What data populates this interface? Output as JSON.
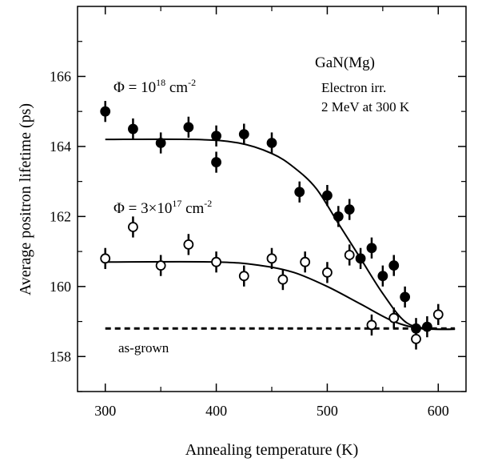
{
  "chart_data": {
    "type": "scatter",
    "xlabel": "Annealing temperature (K)",
    "ylabel": "Average positron lifetime (ps)",
    "xlim": [
      275,
      625
    ],
    "ylim": [
      157,
      168
    ],
    "x_ticks": [
      300,
      400,
      500,
      600
    ],
    "x_tick_labels": [
      "300",
      "400",
      "500",
      "600"
    ],
    "y_ticks": [
      158,
      160,
      162,
      164,
      166
    ],
    "y_tick_labels": [
      "158",
      "160",
      "162",
      "164",
      "166"
    ],
    "grid": false,
    "series": [
      {
        "name": "Φ = 10¹⁸ cm⁻²",
        "marker": "filled-circle",
        "points": [
          {
            "x": 300,
            "y": 165.0
          },
          {
            "x": 325,
            "y": 164.5
          },
          {
            "x": 350,
            "y": 164.1
          },
          {
            "x": 375,
            "y": 164.55
          },
          {
            "x": 400,
            "y": 164.3
          },
          {
            "x": 400,
            "y": 163.55
          },
          {
            "x": 425,
            "y": 164.35
          },
          {
            "x": 450,
            "y": 164.1
          },
          {
            "x": 475,
            "y": 162.7
          },
          {
            "x": 500,
            "y": 162.6
          },
          {
            "x": 510,
            "y": 162.0
          },
          {
            "x": 520,
            "y": 162.2
          },
          {
            "x": 530,
            "y": 160.8
          },
          {
            "x": 540,
            "y": 161.1
          },
          {
            "x": 550,
            "y": 160.3
          },
          {
            "x": 560,
            "y": 160.6
          },
          {
            "x": 570,
            "y": 159.7
          },
          {
            "x": 580,
            "y": 158.8
          },
          {
            "x": 590,
            "y": 158.85
          }
        ],
        "error": 0.3
      },
      {
        "name": "Φ = 3×10¹⁷ cm⁻²",
        "marker": "open-circle",
        "points": [
          {
            "x": 300,
            "y": 160.8
          },
          {
            "x": 325,
            "y": 161.7
          },
          {
            "x": 350,
            "y": 160.6
          },
          {
            "x": 375,
            "y": 161.2
          },
          {
            "x": 400,
            "y": 160.7
          },
          {
            "x": 425,
            "y": 160.3
          },
          {
            "x": 450,
            "y": 160.8
          },
          {
            "x": 460,
            "y": 160.2
          },
          {
            "x": 480,
            "y": 160.7
          },
          {
            "x": 500,
            "y": 160.4
          },
          {
            "x": 520,
            "y": 160.9
          },
          {
            "x": 540,
            "y": 158.9
          },
          {
            "x": 560,
            "y": 159.1
          },
          {
            "x": 580,
            "y": 158.5
          },
          {
            "x": 600,
            "y": 159.2
          }
        ],
        "error": 0.3
      }
    ],
    "fits": [
      {
        "series": "Φ = 10¹⁸ cm⁻²",
        "points": [
          {
            "x": 300,
            "y": 164.2
          },
          {
            "x": 380,
            "y": 164.2
          },
          {
            "x": 420,
            "y": 164.1
          },
          {
            "x": 450,
            "y": 163.8
          },
          {
            "x": 470,
            "y": 163.4
          },
          {
            "x": 490,
            "y": 162.8
          },
          {
            "x": 510,
            "y": 161.8
          },
          {
            "x": 530,
            "y": 160.8
          },
          {
            "x": 550,
            "y": 159.8
          },
          {
            "x": 570,
            "y": 159.0
          },
          {
            "x": 590,
            "y": 158.8
          },
          {
            "x": 615,
            "y": 158.78
          }
        ]
      },
      {
        "series": "Φ = 3×10¹⁷ cm⁻²",
        "points": [
          {
            "x": 300,
            "y": 160.7
          },
          {
            "x": 400,
            "y": 160.7
          },
          {
            "x": 440,
            "y": 160.6
          },
          {
            "x": 470,
            "y": 160.4
          },
          {
            "x": 500,
            "y": 160.0
          },
          {
            "x": 530,
            "y": 159.5
          },
          {
            "x": 560,
            "y": 159.0
          },
          {
            "x": 585,
            "y": 158.8
          },
          {
            "x": 615,
            "y": 158.78
          }
        ]
      }
    ],
    "reference_line": {
      "label": "as-grown",
      "y": 158.8,
      "x_start": 300,
      "x_end": 615,
      "style": "dashed"
    },
    "annotations": {
      "sample": "GaN(Mg)",
      "irradiation_line1": "Electron irr.",
      "irradiation_line2": "2 MeV at 300 K",
      "phi_high_prefix": "Φ = 10",
      "phi_high_exp": "18",
      "phi_high_unit": " cm",
      "phi_high_unit_exp": "-2",
      "phi_low_prefix": "Φ = 3×10",
      "phi_low_exp": "17",
      "phi_low_unit": " cm",
      "phi_low_unit_exp": "-2"
    }
  }
}
